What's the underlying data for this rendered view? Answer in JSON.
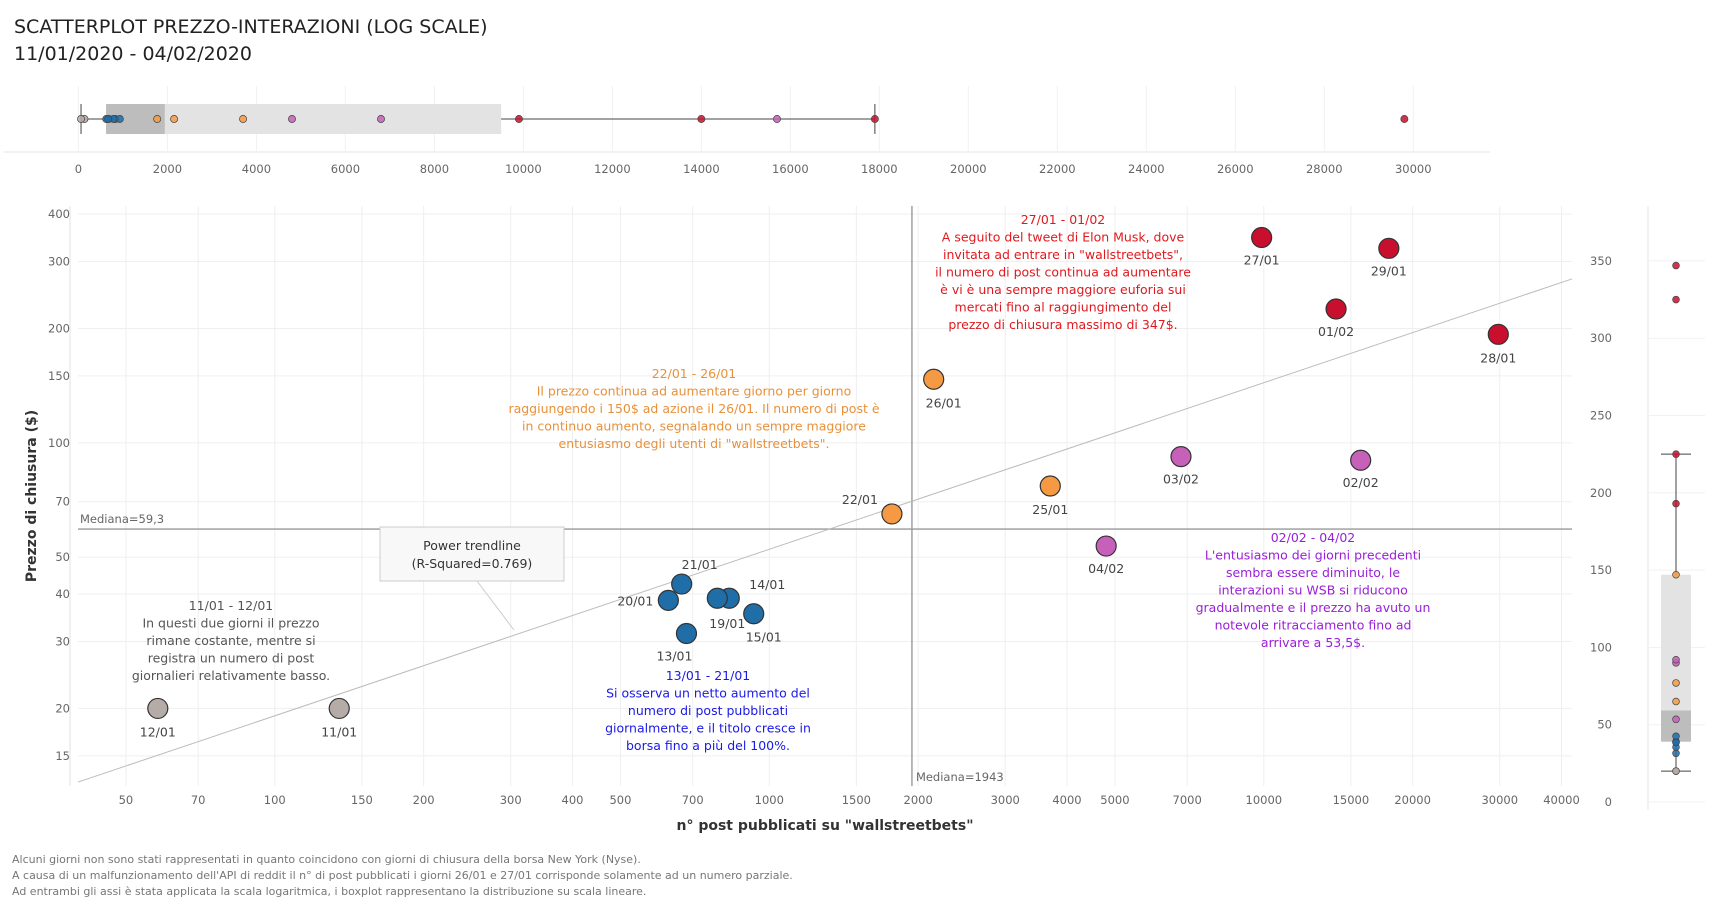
{
  "title": {
    "line1": "SCATTERPLOT PREZZO-INTERAZIONI (LOG SCALE)",
    "line2": "11/01/2020 - 04/02/2020"
  },
  "footnotes": [
    "Alcuni giorni non sono stati rappresentati in quanto coincidono con giorni di chiusura della borsa New York (Nyse).",
    "A causa di un malfunzionamento  dell'API di reddit il n° di post pubblicati i giorni 26/01 e 27/01 corrisponde solamente ad un numero parziale.",
    "Ad entrambi gli assi è stata applicata la scala logaritmica, i boxplot rappresentano la distribuzione su scala lineare."
  ],
  "colors": {
    "phase_11_12": "#b5aca8",
    "phase_13_21": "#1f6ea8",
    "phase_22_26": "#f59a43",
    "phase_27_01": "#c8102e",
    "phase_02_04": "#c660b8",
    "ann_11_12": "#555555",
    "ann_13_21": "#1a1ae6",
    "ann_22_26": "#e8913a",
    "ann_27_01": "#e0191e",
    "ann_02_04": "#9a20d8"
  },
  "chart_data": {
    "type": "scatter",
    "xscale": "log",
    "yscale": "log",
    "xlabel": "n° post pubblicati su \"wallstreetbets\"",
    "ylabel": "Prezzo di chiusura ($)",
    "xticks": [
      50,
      70,
      100,
      150,
      200,
      300,
      400,
      500,
      700,
      1000,
      1500,
      2000,
      3000,
      4000,
      5000,
      7000,
      10000,
      15000,
      20000,
      30000,
      40000
    ],
    "yticks": [
      15,
      20,
      30,
      40,
      50,
      70,
      100,
      150,
      200,
      300,
      400
    ],
    "xlim": [
      40,
      42000
    ],
    "ylim": [
      12.5,
      420
    ],
    "points": [
      {
        "label": "11/01",
        "x": 135,
        "y": 20.0,
        "group": "phase_11_12"
      },
      {
        "label": "12/01",
        "x": 58,
        "y": 20.0,
        "group": "phase_11_12"
      },
      {
        "label": "13/01",
        "x": 680,
        "y": 31.5,
        "group": "phase_13_21"
      },
      {
        "label": "14/01",
        "x": 830,
        "y": 39.0,
        "group": "phase_13_21"
      },
      {
        "label": "15/01",
        "x": 930,
        "y": 35.5,
        "group": "phase_13_21"
      },
      {
        "label": "19/01",
        "x": 785,
        "y": 39.0,
        "group": "phase_13_21"
      },
      {
        "label": "20/01",
        "x": 625,
        "y": 38.5,
        "group": "phase_13_21"
      },
      {
        "label": "21/01",
        "x": 665,
        "y": 42.5,
        "group": "phase_13_21"
      },
      {
        "label": "22/01",
        "x": 1770,
        "y": 65.0,
        "group": "phase_22_26"
      },
      {
        "label": "25/01",
        "x": 3700,
        "y": 77.0,
        "group": "phase_22_26"
      },
      {
        "label": "26/01",
        "x": 2150,
        "y": 147.0,
        "group": "phase_22_26"
      },
      {
        "label": "27/01",
        "x": 9900,
        "y": 347.0,
        "group": "phase_27_01"
      },
      {
        "label": "28/01",
        "x": 29800,
        "y": 193.0,
        "group": "phase_27_01"
      },
      {
        "label": "29/01",
        "x": 17900,
        "y": 325.0,
        "group": "phase_27_01"
      },
      {
        "label": "01/02",
        "x": 14000,
        "y": 225.0,
        "group": "phase_27_01"
      },
      {
        "label": "02/02",
        "x": 15700,
        "y": 90.0,
        "group": "phase_02_04"
      },
      {
        "label": "03/02",
        "x": 6800,
        "y": 92.0,
        "group": "phase_02_04"
      },
      {
        "label": "04/02",
        "x": 4800,
        "y": 53.5,
        "group": "phase_02_04"
      }
    ],
    "median_x": {
      "value": 1943,
      "label": "Mediana=1943"
    },
    "median_y": {
      "value": 59.3,
      "label": "Mediana=59,3"
    },
    "trendline": {
      "type": "power",
      "label": "Power trendline",
      "r2_label": "(R-Squared=0.769)",
      "x_start": 40,
      "y_start": 12.8,
      "x_end": 42000,
      "y_end": 270
    },
    "annotations": [
      {
        "group": "ann_11_12",
        "lines": [
          "11/01 - 12/01",
          "In questi due giorni il prezzo",
          "rimane costante, mentre si",
          "registra un numero di post",
          "giornalieri relativamente basso."
        ]
      },
      {
        "group": "ann_13_21",
        "lines": [
          "13/01 - 21/01",
          "Si osserva un netto aumento del",
          "numero di post pubblicati",
          "giornalmente, e il titolo cresce in",
          "borsa fino a più del 100%."
        ]
      },
      {
        "group": "ann_22_26",
        "lines": [
          "22/01 - 26/01",
          "Il prezzo continua ad aumentare giorno per giorno",
          "raggiungendo i 150$ ad azione il 26/01. Il numero di post è",
          "in continuo aumento, segnalando un sempre maggiore",
          "entusiasmo degli utenti di \"wallstreetbets\"."
        ]
      },
      {
        "group": "ann_27_01",
        "lines": [
          "27/01 - 01/02",
          "A seguito del tweet di Elon Musk, dove",
          "invitata ad entrare in \"wallstreetbets\",",
          "il numero di post continua ad aumentare",
          "è vi è una sempre maggiore euforia sui",
          "mercati fino al raggiungimento del",
          "prezzo di chiusura massimo di 347$."
        ]
      },
      {
        "group": "ann_02_04",
        "lines": [
          "02/02 - 04/02",
          "L'entusiasmo dei giorni precedenti",
          "sembra essere diminuito, le",
          "interazioni su WSB si riducono",
          "gradualmente e il prezzo ha avuto un",
          "notevole ritracciamento fino ad",
          "arrivare a 53,5$."
        ]
      }
    ],
    "boxplot_x": {
      "scale": "linear",
      "ticks": [
        0,
        2000,
        4000,
        6000,
        8000,
        10000,
        12000,
        14000,
        16000,
        18000,
        20000,
        22000,
        24000,
        26000,
        28000,
        30000
      ],
      "xlim": [
        -100,
        31500
      ],
      "whisker_low": 58,
      "q1": 620,
      "median": 1943,
      "q3": 9500,
      "whisker_high": 17900
    },
    "boxplot_y": {
      "scale": "linear",
      "ticks": [
        0,
        50,
        100,
        150,
        200,
        250,
        300,
        350
      ],
      "ylim": [
        0,
        370
      ],
      "whisker_low": 20,
      "q1": 39,
      "median": 59.3,
      "q3": 147,
      "whisker_high": 225
    }
  }
}
